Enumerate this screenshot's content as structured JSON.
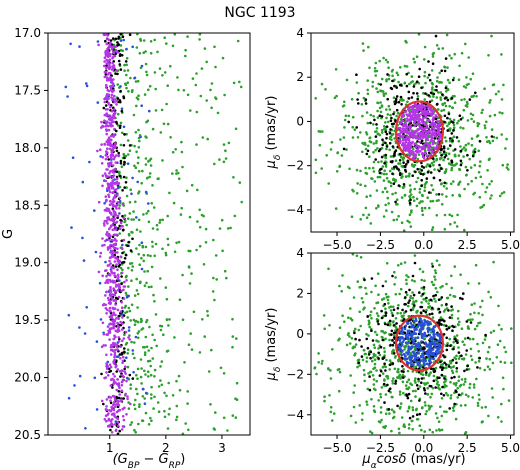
{
  "figure_title": "NGC 1193",
  "colors": {
    "member": "#b536e6",
    "field": "#2ca02c",
    "other": "#000000",
    "blue": "#2850d8",
    "circle": "#e03030"
  },
  "chart_data": [
    {
      "type": "scatter",
      "panel": "CMD",
      "xlabel": "(G_BP − G_RP)",
      "ylabel": "G",
      "xlim": [
        -0.1,
        3.5
      ],
      "ylim": [
        20.5,
        17.0
      ],
      "y_inverted": true,
      "xticks": [
        1,
        2,
        3
      ],
      "yticks": [
        17.0,
        17.5,
        18.0,
        18.5,
        19.0,
        19.5,
        20.0,
        20.5
      ],
      "ytick_labels": [
        "17.0",
        "17.5",
        "18.0",
        "18.5",
        "19.0",
        "19.5",
        "20.0",
        "20.5"
      ],
      "grid": false,
      "series": [
        {
          "color": "field",
          "description": "broad field-star cloud",
          "x_range": [
            0.9,
            3.4
          ],
          "y_range": [
            17.0,
            20.5
          ],
          "n": 520
        },
        {
          "color": "blue",
          "description": "sparse points, edges of sequence",
          "x_range": [
            0.2,
            1.9
          ],
          "y_range": [
            17.0,
            20.5
          ],
          "n": 110
        },
        {
          "color": "other",
          "description": "sequence core",
          "x_center": 1.12,
          "x_spread": 0.18,
          "y_range": [
            17.0,
            20.5
          ],
          "n": 260
        },
        {
          "color": "member",
          "description": "narrow main-sequence band, redder at faint magnitudes",
          "x_center_bright": 0.97,
          "x_center_faint": 1.12,
          "x_spread": 0.09,
          "y_range": [
            17.0,
            20.5
          ],
          "n": 720
        }
      ]
    },
    {
      "type": "scatter",
      "panel": "VPD top",
      "xlabel": "",
      "ylabel": "μδ (mas/yr)",
      "xlim": [
        -6.5,
        5.2
      ],
      "ylim": [
        -5.0,
        4.0
      ],
      "xticks": [
        -5.0,
        -2.5,
        0.0,
        2.5,
        5.0
      ],
      "xtick_labels": [
        "−5.0",
        "−2.5",
        "0.0",
        "2.5",
        "5.0"
      ],
      "yticks": [
        -4,
        -2,
        0,
        2,
        4
      ],
      "ytick_labels": [
        "−4",
        "−2",
        "0",
        "2",
        "4"
      ],
      "grid": false,
      "circle": {
        "center": [
          -0.25,
          -0.45
        ],
        "radius": 1.35
      },
      "series": [
        {
          "color": "field",
          "description": "field stars",
          "center": [
            -0.3,
            -1.0
          ],
          "spread": 2.3,
          "n": 900
        },
        {
          "color": "other",
          "description": "near-cluster stars",
          "center": [
            -0.3,
            -0.5
          ],
          "spread": 1.4,
          "n": 330
        },
        {
          "color": "member",
          "description": "cluster members inside circle",
          "center": [
            -0.25,
            -0.45
          ],
          "radius": 1.25,
          "n": 420
        }
      ]
    },
    {
      "type": "scatter",
      "panel": "VPD bottom",
      "xlabel": "μα cosδ (mas/yr)",
      "ylabel": "μδ (mas/yr)",
      "xlim": [
        -6.5,
        5.2
      ],
      "ylim": [
        -5.0,
        4.0
      ],
      "xticks": [
        -5.0,
        -2.5,
        0.0,
        2.5,
        5.0
      ],
      "xtick_labels": [
        "−5.0",
        "−2.5",
        "0.0",
        "2.5",
        "5.0"
      ],
      "yticks": [
        -4,
        -2,
        0,
        2,
        4
      ],
      "ytick_labels": [
        "−4",
        "−2",
        "0",
        "2",
        "4"
      ],
      "grid": false,
      "circle": {
        "center": [
          -0.25,
          -0.45
        ],
        "radius": 1.35
      },
      "series": [
        {
          "color": "field",
          "description": "field stars",
          "center": [
            -0.3,
            -1.0
          ],
          "spread": 2.3,
          "n": 900
        },
        {
          "color": "other",
          "description": "near-cluster stars",
          "center": [
            -0.3,
            -0.5
          ],
          "spread": 1.4,
          "n": 330
        },
        {
          "color": "blue",
          "description": "members inside circle",
          "center": [
            -0.25,
            -0.45
          ],
          "radius": 1.25,
          "n": 300
        }
      ]
    }
  ]
}
